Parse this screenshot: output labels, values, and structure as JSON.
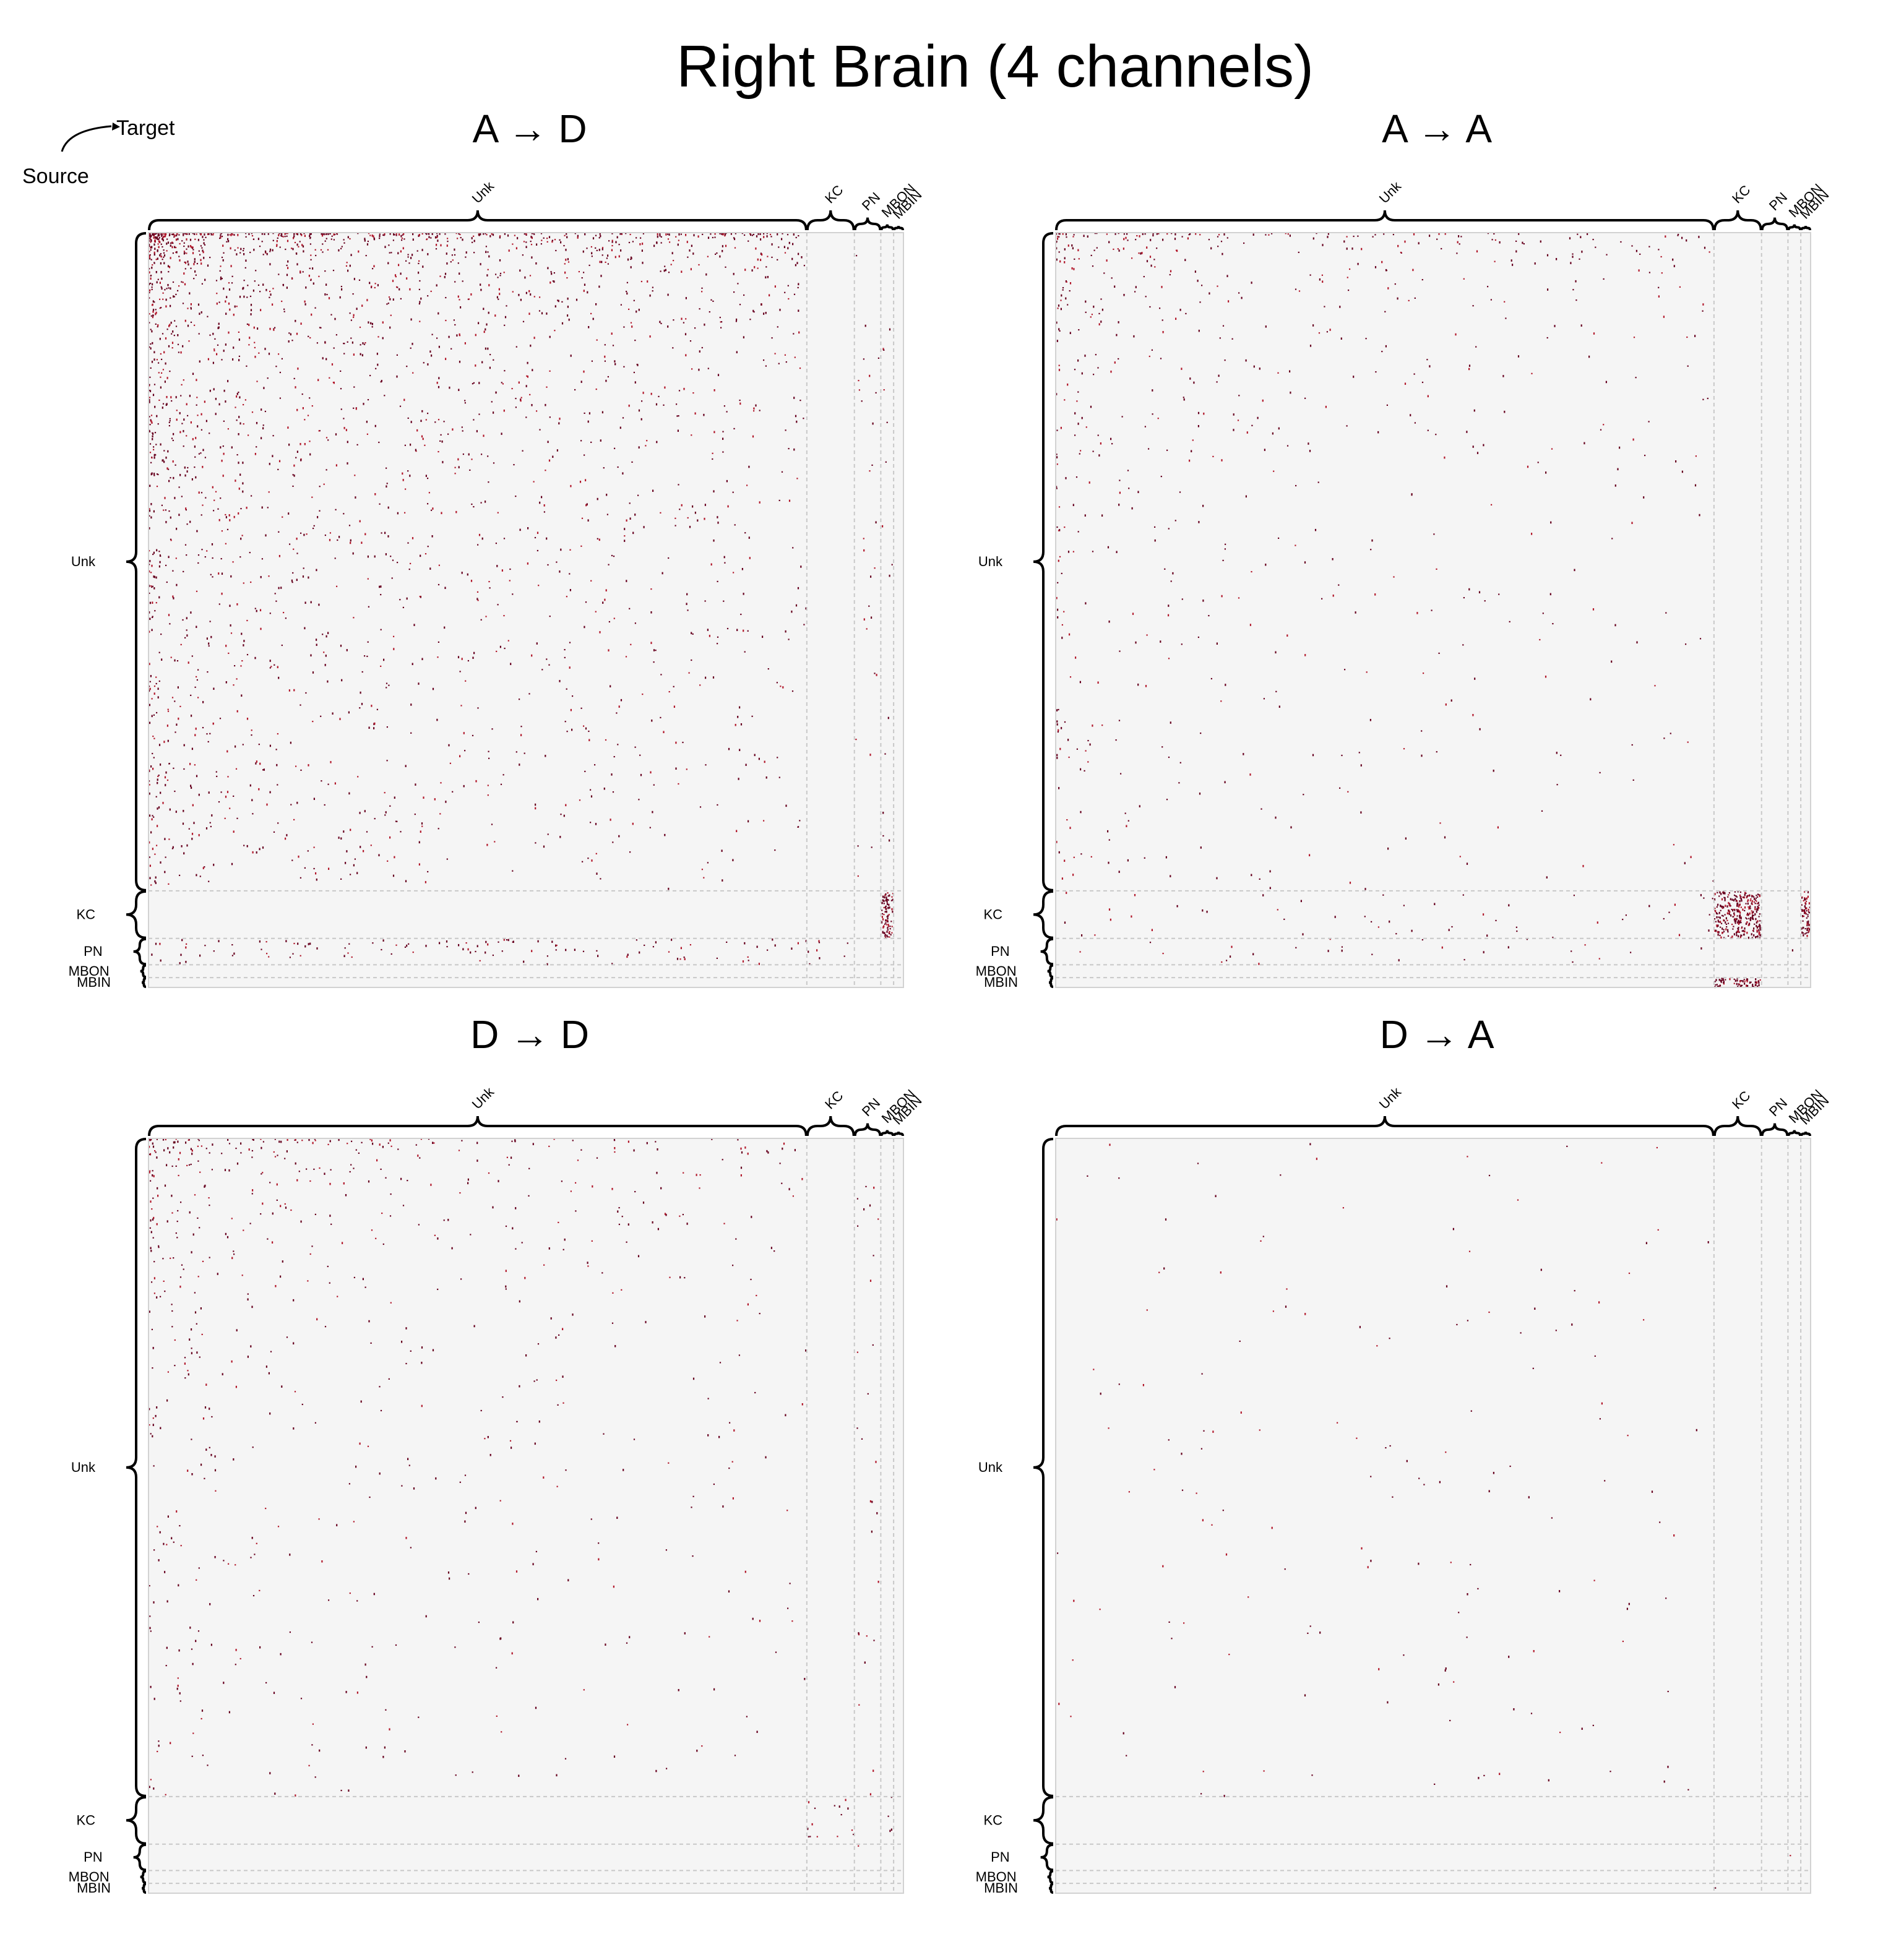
{
  "figure": {
    "title": "Right Brain (4 channels)",
    "legend": {
      "source_label": "Source",
      "target_label": "Target"
    }
  },
  "groups": [
    "Unk",
    "KC",
    "PN",
    "MBON",
    "MBIN"
  ],
  "colors": {
    "background": "#f5f5f5",
    "edge": "#67001f",
    "edge_light": "#b2182b",
    "separator": "#c8c8c8"
  },
  "chart_data": [
    {
      "type": "heatmap",
      "title": "A → D",
      "row_label": "Source",
      "col_label": "Target",
      "groups": [
        "Unk",
        "KC",
        "PN",
        "MBON",
        "MBIN"
      ],
      "blocks": [
        {
          "source": "Unk",
          "target": "Unk",
          "density": "medium, concentrated in upper-left"
        },
        {
          "source": "Unk",
          "target": "PN",
          "density": "sparse"
        },
        {
          "source": "Unk",
          "target": "MBON",
          "density": "sparse"
        },
        {
          "source": "KC",
          "target": "MBON",
          "density": "dense"
        },
        {
          "source": "PN",
          "target": "Unk",
          "density": "medium"
        },
        {
          "source": "PN",
          "target": "KC",
          "density": "medium"
        },
        {
          "source": "MBIN",
          "target": "MBON",
          "density": "sparse"
        }
      ]
    },
    {
      "type": "heatmap",
      "title": "A → A",
      "row_label": "Source",
      "col_label": "Target",
      "groups": [
        "Unk",
        "KC",
        "PN",
        "MBON",
        "MBIN"
      ],
      "blocks": [
        {
          "source": "Unk",
          "target": "Unk",
          "density": "sparse, upper-left"
        },
        {
          "source": "KC",
          "target": "KC",
          "density": "dense"
        },
        {
          "source": "KC",
          "target": "Unk",
          "density": "sparse"
        },
        {
          "source": "KC",
          "target": "MBIN",
          "density": "dense"
        },
        {
          "source": "PN",
          "target": "Unk",
          "density": "sparse"
        },
        {
          "source": "PN",
          "target": "MBON",
          "density": "sparse"
        },
        {
          "source": "MBIN",
          "target": "KC",
          "density": "dense"
        }
      ]
    },
    {
      "type": "heatmap",
      "title": "D → D",
      "row_label": "Source",
      "col_label": "Target",
      "groups": [
        "Unk",
        "KC",
        "PN",
        "MBON",
        "MBIN"
      ],
      "blocks": [
        {
          "source": "Unk",
          "target": "Unk",
          "density": "sparse, top rows"
        },
        {
          "source": "Unk",
          "target": "PN",
          "density": "sparse"
        },
        {
          "source": "KC",
          "target": "KC",
          "density": "medium"
        },
        {
          "source": "KC",
          "target": "MBON",
          "density": "medium"
        },
        {
          "source": "PN",
          "target": "PN",
          "density": "sparse"
        },
        {
          "source": "MBIN",
          "target": "MBON",
          "density": "sparse"
        }
      ]
    },
    {
      "type": "heatmap",
      "title": "D → A",
      "row_label": "Source",
      "col_label": "Target",
      "groups": [
        "Unk",
        "KC",
        "PN",
        "MBON",
        "MBIN"
      ],
      "blocks": [
        {
          "source": "Unk",
          "target": "Unk",
          "density": "very sparse"
        },
        {
          "source": "MBIN",
          "target": "KC",
          "density": "sparse"
        },
        {
          "source": "PN",
          "target": "MBON",
          "density": "sparse"
        }
      ]
    }
  ]
}
